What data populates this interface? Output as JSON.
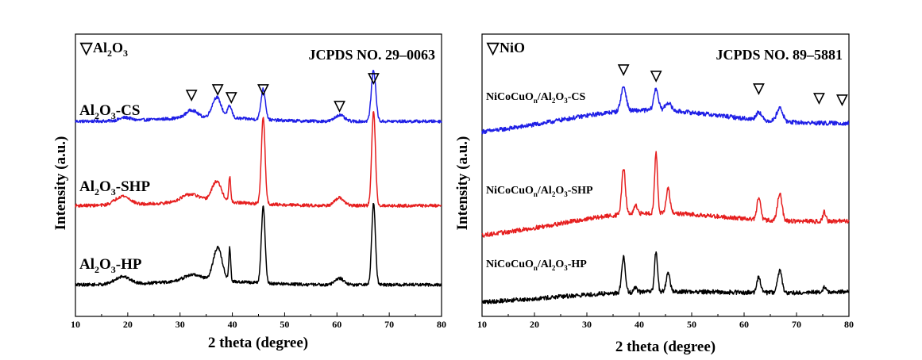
{
  "figure": {
    "panels": [
      {
        "phase_label": "Al2O3",
        "reference": "JCPDS NO. 29–0063",
        "xlabel": "2 theta (degree)",
        "ylabel": "Intensity (a.u.)",
        "curves": [
          {
            "label_main": "Al",
            "label_sub1": "2",
            "label_mid": "O",
            "label_sub2": "3",
            "label_tail": "-CS"
          },
          {
            "label_main": "Al",
            "label_sub1": "2",
            "label_mid": "O",
            "label_sub2": "3",
            "label_tail": "-SHP"
          },
          {
            "label_main": "Al",
            "label_sub1": "2",
            "label_mid": "O",
            "label_sub2": "3",
            "label_tail": "-HP"
          }
        ]
      },
      {
        "phase_label": "NiO",
        "reference": "JCPDS NO. 89–5881",
        "xlabel": "2 theta (degree)",
        "ylabel": "Intensity (a.u.)",
        "curves": [
          {
            "label_pre": "NiCoCuO",
            "label_sub0": "n",
            "label_main": "/Al",
            "label_sub1": "2",
            "label_mid": "O",
            "label_sub2": "3",
            "label_tail": "-CS"
          },
          {
            "label_pre": "NiCoCuO",
            "label_sub0": "n",
            "label_main": "/Al",
            "label_sub1": "2",
            "label_mid": "O",
            "label_sub2": "3",
            "label_tail": "-SHP"
          },
          {
            "label_pre": "NiCoCuO",
            "label_sub0": "n",
            "label_main": "/Al",
            "label_sub1": "2",
            "label_mid": "O",
            "label_sub2": "3",
            "label_tail": "-HP"
          }
        ]
      }
    ]
  },
  "chart_data": [
    {
      "type": "line",
      "reference": "JCPDS NO. 29–0063",
      "xlabel": "2 theta (degree)",
      "ylabel": "Intensity (a.u.)",
      "xlim": [
        10,
        80
      ],
      "x_ticks": [
        10,
        20,
        30,
        40,
        50,
        60,
        70,
        80
      ],
      "y_ticks": false,
      "marker_symbol": "▽",
      "marker_positions": [
        32.2,
        37.2,
        39.8,
        45.9,
        60.5,
        67.0
      ],
      "series": [
        {
          "name": "Al2O3-CS",
          "color": "#1f1fe6",
          "baseline": 0.68,
          "noise": 0.006,
          "peaks": [
            [
              19.5,
              0.012,
              1.5
            ],
            [
              32.2,
              0.03,
              1.5
            ],
            [
              37.0,
              0.08,
              1.2
            ],
            [
              39.5,
              0.045,
              0.6
            ],
            [
              45.9,
              0.12,
              0.6
            ],
            [
              60.5,
              0.025,
              1.2
            ],
            [
              67.0,
              0.2,
              0.6
            ]
          ]
        },
        {
          "name": "Al2O3-SHP",
          "color": "#e61f1f",
          "baseline": 0.35,
          "noise": 0.006,
          "peaks": [
            [
              19.0,
              0.035,
              2.0
            ],
            [
              32.0,
              0.03,
              2.5
            ],
            [
              37.0,
              0.08,
              1.3
            ],
            [
              39.5,
              0.1,
              0.25
            ],
            [
              45.9,
              0.34,
              0.5
            ],
            [
              60.5,
              0.03,
              1.2
            ],
            [
              67.0,
              0.37,
              0.5
            ]
          ]
        },
        {
          "name": "Al2O3-HP",
          "color": "#000000",
          "baseline": 0.04,
          "noise": 0.006,
          "peaks": [
            [
              19.0,
              0.03,
              2.0
            ],
            [
              32.5,
              0.025,
              2.5
            ],
            [
              37.2,
              0.13,
              1.2
            ],
            [
              39.5,
              0.13,
              0.25
            ],
            [
              45.9,
              0.3,
              0.5
            ],
            [
              60.5,
              0.025,
              1.2
            ],
            [
              67.0,
              0.32,
              0.5
            ]
          ]
        }
      ]
    },
    {
      "type": "line",
      "reference": "JCPDS NO. 89–5881",
      "xlabel": "2 theta (degree)",
      "ylabel": "Intensity (a.u.)",
      "xlim": [
        10,
        80
      ],
      "x_ticks": [
        10,
        20,
        30,
        40,
        50,
        60,
        70,
        80
      ],
      "y_ticks": false,
      "marker_symbol": "▽",
      "marker_positions": [
        37.0,
        43.2,
        62.8,
        74.3,
        78.7
      ],
      "series": [
        {
          "name": "NiCoCuOn/Al2O3-CS",
          "color": "#1f1fe6",
          "baseline_start": 0.62,
          "baseline_peak": 0.71,
          "baseline_end": 0.66,
          "noise": 0.008,
          "peaks": [
            [
              37.0,
              0.09,
              0.7
            ],
            [
              43.2,
              0.08,
              0.6
            ],
            [
              45.5,
              0.03,
              0.8
            ],
            [
              62.8,
              0.03,
              0.7
            ],
            [
              66.8,
              0.05,
              0.8
            ]
          ]
        },
        {
          "name": "NiCoCuOn/Al2O3-SHP",
          "color": "#e61f1f",
          "baseline_start": 0.24,
          "baseline_peak": 0.33,
          "baseline_end": 0.3,
          "noise": 0.008,
          "peaks": [
            [
              37.0,
              0.17,
              0.5
            ],
            [
              39.3,
              0.03,
              0.4
            ],
            [
              43.2,
              0.22,
              0.4
            ],
            [
              45.5,
              0.09,
              0.5
            ],
            [
              62.8,
              0.08,
              0.5
            ],
            [
              66.8,
              0.1,
              0.6
            ],
            [
              75.3,
              0.035,
              0.4
            ]
          ]
        },
        {
          "name": "NiCoCuOn/Al2O3-HP",
          "color": "#000000",
          "baseline_start": 0.0,
          "baseline_peak": 0.04,
          "baseline_end": 0.04,
          "noise": 0.008,
          "peaks": [
            [
              37.0,
              0.13,
              0.5
            ],
            [
              39.3,
              0.02,
              0.4
            ],
            [
              43.2,
              0.15,
              0.4
            ],
            [
              45.5,
              0.07,
              0.5
            ],
            [
              62.8,
              0.06,
              0.5
            ],
            [
              66.8,
              0.08,
              0.6
            ],
            [
              75.3,
              0.02,
              0.4
            ]
          ]
        }
      ]
    }
  ]
}
